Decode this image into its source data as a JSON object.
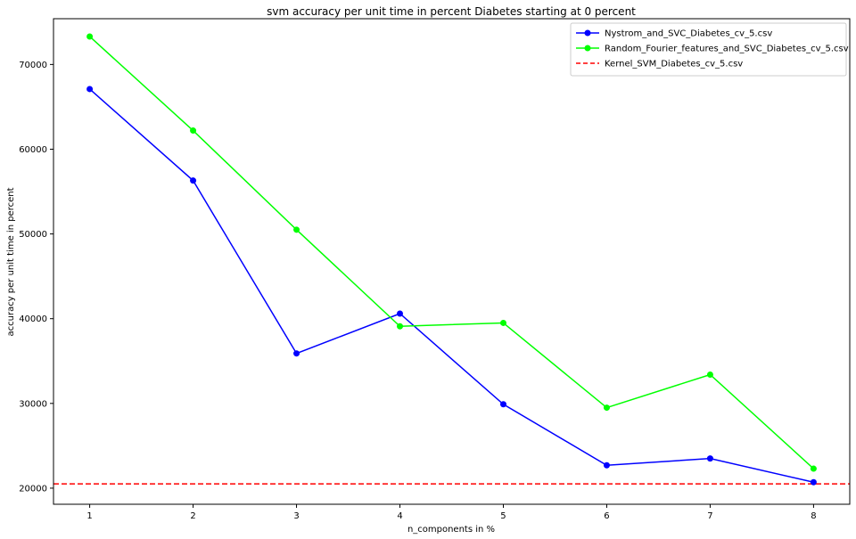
{
  "chart_data": {
    "type": "line",
    "title": "svm accuracy per unit time in percent Diabetes starting at 0 percent",
    "xlabel": "n_components in %",
    "ylabel": "accuracy per unit time in percent",
    "x": [
      1,
      2,
      3,
      4,
      5,
      6,
      7,
      8
    ],
    "xlim": [
      0.65,
      8.35
    ],
    "ylim": [
      18100,
      75400
    ],
    "xticks": [
      1,
      2,
      3,
      4,
      5,
      6,
      7,
      8
    ],
    "yticks": [
      20000,
      30000,
      40000,
      50000,
      60000,
      70000
    ],
    "grid": false,
    "legend_position": "top-right",
    "series": [
      {
        "name": "Nystrom_and_SVC_Diabetes_cv_5.csv",
        "color": "#0000ff",
        "marker": "circle",
        "linestyle": "solid",
        "values": [
          67100,
          56300,
          35900,
          40600,
          29900,
          22700,
          23500,
          20700
        ]
      },
      {
        "name": "Random_Fourier_features_and_SVC_Diabetes_cv_5.csv",
        "color": "#00ff00",
        "marker": "circle",
        "linestyle": "solid",
        "values": [
          73300,
          62200,
          50500,
          39100,
          39500,
          29500,
          33400,
          22300
        ]
      },
      {
        "name": "Kernel_SVM_Diabetes_cv_5.csv",
        "color": "#ff0000",
        "marker": "none",
        "linestyle": "dashed",
        "hline": 20500
      }
    ]
  }
}
